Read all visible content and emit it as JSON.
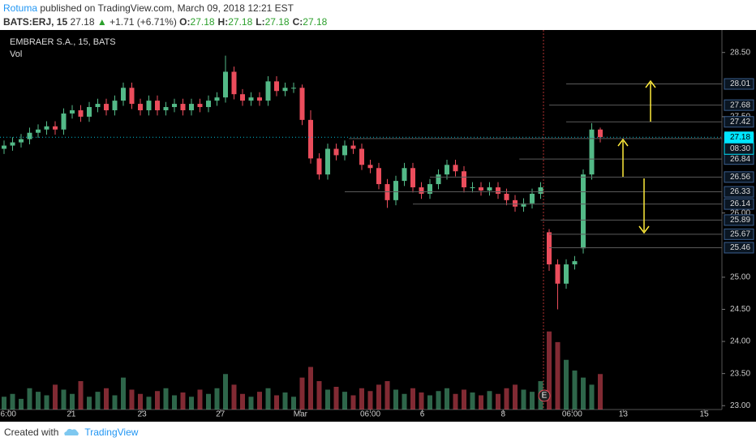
{
  "header": {
    "author": "Rotuma",
    "published": "published on TradingView.com, March 09, 2018 12:21 EST",
    "symbol": "BATS:ERJ, 15",
    "last": "27.18",
    "arrow": "▲",
    "change": "+1.71 (+6.71%)",
    "ohlc": [
      {
        "key": "O:",
        "val": "27.18"
      },
      {
        "key": "H:",
        "val": "27.18"
      },
      {
        "key": "L:",
        "val": "27.18"
      },
      {
        "key": "C:",
        "val": "27.18"
      }
    ]
  },
  "chart_data": {
    "type": "candlestick",
    "title": "EMBRAER S.A., 15, BATS",
    "volume_label": "Vol",
    "earnings_marker": "E",
    "up_color": "#53b987",
    "down_color": "#eb4d5c",
    "x": [
      0,
      1,
      2,
      3,
      4,
      5,
      6,
      7,
      8,
      9,
      10,
      11,
      12,
      13,
      14,
      15,
      16,
      17,
      18,
      19,
      20,
      21,
      22,
      23,
      24,
      25,
      26,
      27,
      28,
      29,
      30,
      31,
      32,
      33,
      34,
      35,
      36,
      37,
      38,
      39,
      40,
      41,
      42,
      43,
      44,
      45,
      46,
      47,
      48,
      49,
      50,
      51,
      52,
      53,
      54,
      55,
      56,
      57,
      58,
      59,
      60,
      61,
      62,
      63,
      64,
      65,
      66,
      67,
      68,
      69,
      70
    ],
    "open": [
      27.0,
      27.05,
      27.1,
      27.15,
      27.25,
      27.3,
      27.35,
      27.3,
      27.55,
      27.6,
      27.5,
      27.65,
      27.7,
      27.6,
      27.75,
      27.95,
      27.7,
      27.6,
      27.75,
      27.6,
      27.65,
      27.7,
      27.6,
      27.7,
      27.65,
      27.75,
      27.8,
      28.2,
      27.85,
      27.75,
      27.8,
      27.75,
      28.05,
      27.9,
      27.95,
      27.95,
      27.45,
      26.85,
      26.6,
      27.0,
      26.9,
      27.05,
      27.0,
      26.75,
      26.7,
      26.45,
      26.2,
      26.5,
      26.7,
      26.4,
      26.3,
      26.45,
      26.6,
      26.75,
      26.65,
      26.4,
      26.4,
      26.35,
      26.4,
      26.3,
      26.2,
      26.1,
      26.15,
      26.3,
      25.7,
      25.2,
      24.9,
      25.2,
      25.45,
      26.6,
      27.3
    ],
    "high": [
      27.13,
      27.18,
      27.23,
      27.33,
      27.38,
      27.43,
      27.43,
      27.63,
      27.68,
      27.68,
      27.73,
      27.78,
      27.78,
      27.83,
      28.03,
      28.03,
      27.78,
      27.83,
      27.83,
      27.73,
      27.78,
      27.78,
      27.78,
      27.78,
      27.83,
      27.88,
      28.45,
      28.28,
      27.93,
      27.88,
      27.88,
      28.13,
      28.13,
      28.03,
      28.03,
      28.0,
      27.6,
      26.93,
      27.08,
      27.08,
      27.13,
      27.13,
      27.08,
      26.83,
      26.78,
      26.53,
      26.58,
      26.78,
      26.78,
      26.48,
      26.53,
      26.68,
      26.83,
      26.83,
      26.73,
      26.48,
      26.48,
      26.48,
      26.48,
      26.38,
      26.28,
      26.23,
      26.38,
      26.48,
      25.75,
      25.28,
      25.28,
      25.33,
      26.68,
      27.4,
      27.33
    ],
    "low": [
      26.92,
      26.97,
      27.02,
      27.07,
      27.17,
      27.22,
      27.22,
      27.22,
      27.47,
      27.42,
      27.42,
      27.57,
      27.52,
      27.52,
      27.67,
      27.62,
      27.52,
      27.52,
      27.52,
      27.52,
      27.57,
      27.52,
      27.52,
      27.57,
      27.57,
      27.67,
      27.72,
      27.77,
      27.67,
      27.67,
      27.67,
      27.67,
      27.82,
      27.82,
      27.87,
      27.37,
      26.77,
      26.52,
      26.52,
      26.82,
      26.82,
      26.92,
      26.67,
      26.62,
      26.37,
      26.08,
      26.12,
      26.42,
      26.32,
      26.22,
      26.22,
      26.37,
      26.52,
      26.57,
      26.32,
      26.32,
      26.27,
      26.27,
      26.22,
      26.12,
      26.02,
      26.02,
      26.07,
      26.22,
      25.1,
      24.5,
      24.82,
      25.12,
      25.37,
      26.52,
      27.1
    ],
    "close": [
      27.05,
      27.1,
      27.15,
      27.25,
      27.3,
      27.35,
      27.3,
      27.55,
      27.6,
      27.5,
      27.65,
      27.7,
      27.6,
      27.75,
      27.95,
      27.7,
      27.6,
      27.75,
      27.6,
      27.65,
      27.7,
      27.6,
      27.7,
      27.65,
      27.75,
      27.8,
      28.2,
      27.85,
      27.75,
      27.8,
      27.75,
      28.05,
      27.9,
      27.95,
      27.95,
      27.45,
      26.85,
      26.6,
      27.0,
      26.9,
      27.05,
      27.0,
      26.75,
      26.7,
      26.45,
      26.2,
      26.5,
      26.7,
      26.4,
      26.3,
      26.45,
      26.6,
      26.75,
      26.65,
      26.4,
      26.4,
      26.35,
      26.4,
      26.3,
      26.2,
      26.1,
      26.15,
      26.3,
      26.4,
      25.2,
      24.9,
      25.2,
      25.25,
      26.6,
      27.3,
      27.18
    ],
    "volume": [
      18,
      22,
      15,
      30,
      25,
      20,
      35,
      28,
      22,
      40,
      18,
      25,
      30,
      20,
      45,
      28,
      22,
      18,
      26,
      30,
      20,
      24,
      18,
      28,
      22,
      30,
      50,
      35,
      22,
      18,
      25,
      30,
      20,
      24,
      18,
      45,
      60,
      40,
      28,
      32,
      25,
      20,
      30,
      26,
      35,
      40,
      28,
      22,
      30,
      24,
      20,
      26,
      30,
      22,
      28,
      24,
      20,
      26,
      22,
      30,
      35,
      28,
      25,
      40,
      110,
      95,
      70,
      55,
      45,
      35,
      50
    ],
    "vlim": [
      0,
      120
    ],
    "xlim": [
      0,
      84
    ],
    "xticks": [
      {
        "value": 0.5,
        "label": "6:00"
      },
      {
        "value": 7.9,
        "label": "21"
      },
      {
        "value": 16.2,
        "label": "23"
      },
      {
        "value": 25.4,
        "label": "27"
      },
      {
        "value": 34.8,
        "label": "Mar"
      },
      {
        "value": 43,
        "label": "06:00"
      },
      {
        "value": 49.1,
        "label": "6"
      },
      {
        "value": 58.6,
        "label": "8"
      },
      {
        "value": 66.7,
        "label": "06:00"
      },
      {
        "value": 72.7,
        "label": "13"
      },
      {
        "value": 82.2,
        "label": "15"
      }
    ],
    "ylim": [
      22.94,
      28.85
    ],
    "yticks": [
      {
        "value": 23,
        "label": "23.00"
      },
      {
        "value": 23.5,
        "label": "23.50"
      },
      {
        "value": 24,
        "label": "24.00"
      },
      {
        "value": 24.5,
        "label": "24.50"
      },
      {
        "value": 25,
        "label": "25.00"
      },
      {
        "value": 26,
        "label": "26.00"
      },
      {
        "value": 27.5,
        "label": "27.50"
      },
      {
        "value": 28.5,
        "label": "28.50"
      }
    ],
    "levels": [
      28.01,
      27.68,
      27.42,
      27.16,
      26.84,
      26.56,
      26.33,
      26.14,
      25.89,
      25.67,
      25.46
    ],
    "level_from": [
      66,
      64,
      66,
      40.5,
      60.5,
      50,
      40,
      48,
      63,
      64,
      64
    ],
    "current_price": {
      "value": 27.18,
      "label": "27.18"
    },
    "countdown": "08:30"
  },
  "footer": {
    "created": "Created with",
    "brand": "TradingView"
  }
}
